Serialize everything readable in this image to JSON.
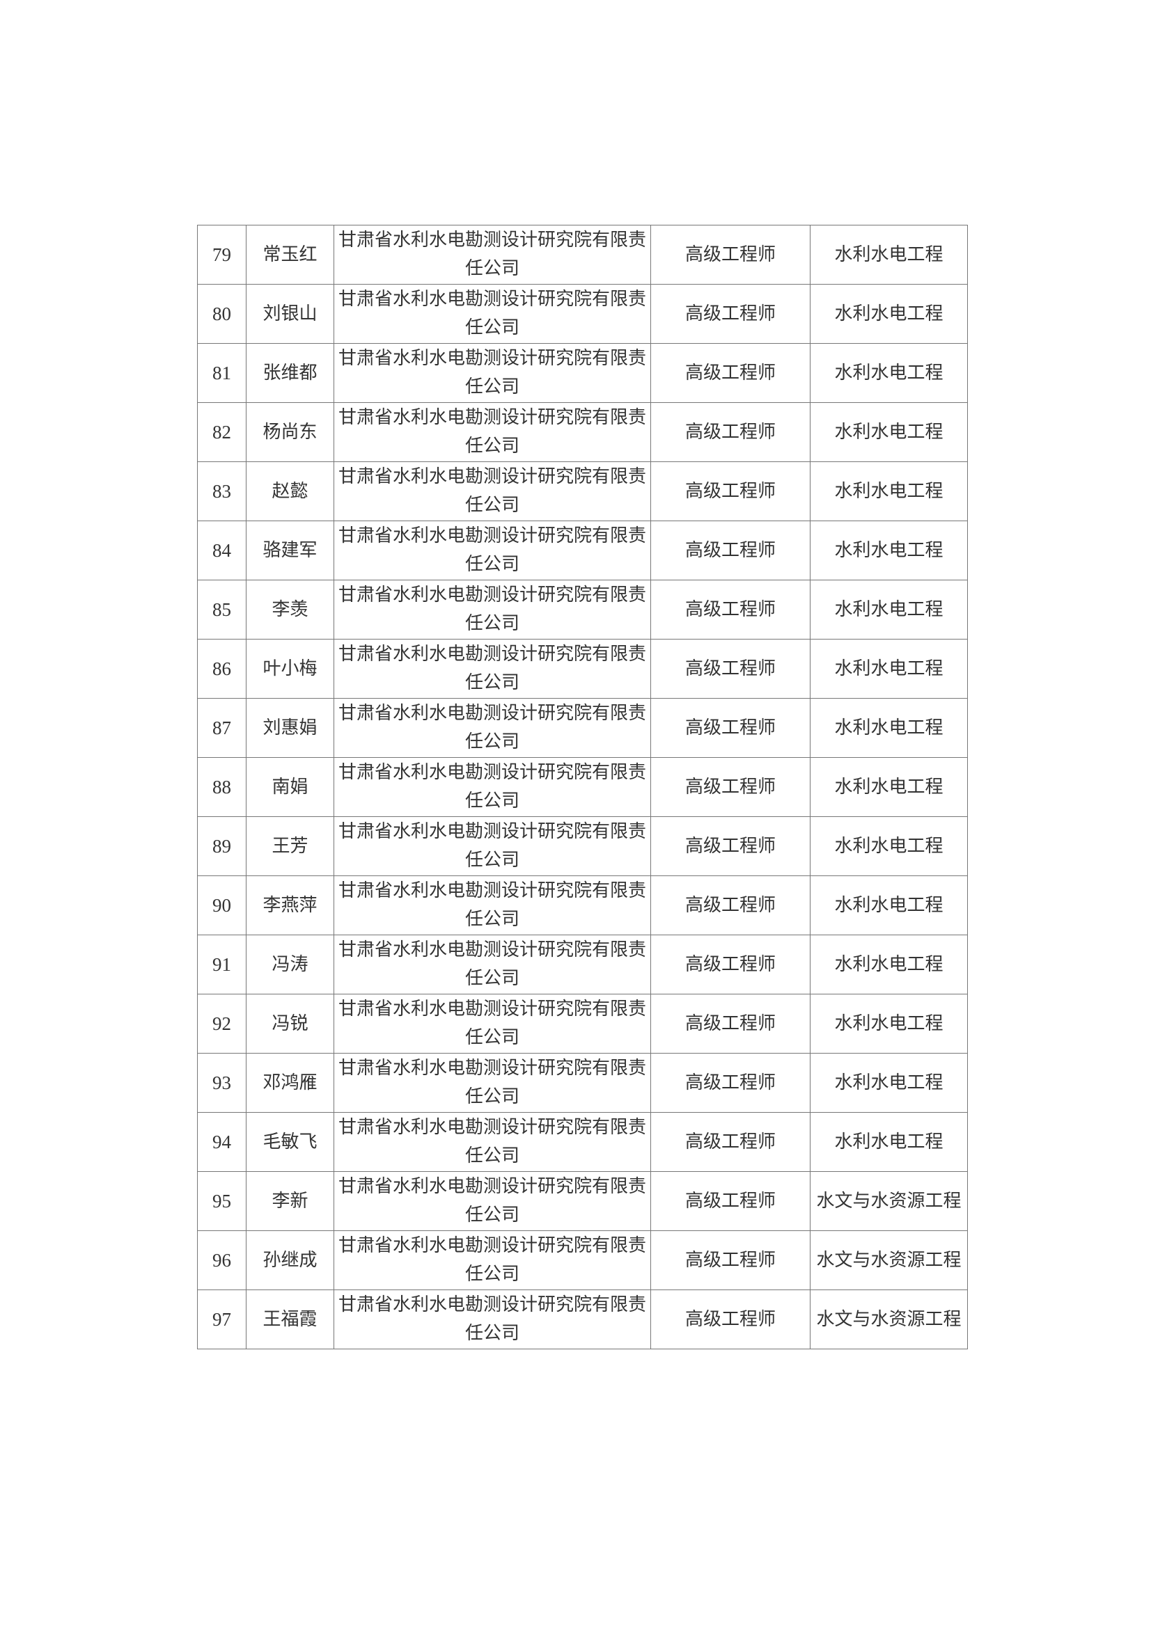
{
  "rows": [
    {
      "no": "79",
      "name": "常玉红",
      "org": "甘肃省水利水电勘测设计研究院有限责任公司",
      "title": "高级工程师",
      "major": "水利水电工程"
    },
    {
      "no": "80",
      "name": "刘银山",
      "org": "甘肃省水利水电勘测设计研究院有限责任公司",
      "title": "高级工程师",
      "major": "水利水电工程"
    },
    {
      "no": "81",
      "name": "张维都",
      "org": "甘肃省水利水电勘测设计研究院有限责任公司",
      "title": "高级工程师",
      "major": "水利水电工程"
    },
    {
      "no": "82",
      "name": "杨尚东",
      "org": "甘肃省水利水电勘测设计研究院有限责任公司",
      "title": "高级工程师",
      "major": "水利水电工程"
    },
    {
      "no": "83",
      "name": "赵懿",
      "org": "甘肃省水利水电勘测设计研究院有限责任公司",
      "title": "高级工程师",
      "major": "水利水电工程"
    },
    {
      "no": "84",
      "name": "骆建军",
      "org": "甘肃省水利水电勘测设计研究院有限责任公司",
      "title": "高级工程师",
      "major": "水利水电工程"
    },
    {
      "no": "85",
      "name": "李羡",
      "org": "甘肃省水利水电勘测设计研究院有限责任公司",
      "title": "高级工程师",
      "major": "水利水电工程"
    },
    {
      "no": "86",
      "name": "叶小梅",
      "org": "甘肃省水利水电勘测设计研究院有限责任公司",
      "title": "高级工程师",
      "major": "水利水电工程"
    },
    {
      "no": "87",
      "name": "刘惠娟",
      "org": "甘肃省水利水电勘测设计研究院有限责任公司",
      "title": "高级工程师",
      "major": "水利水电工程"
    },
    {
      "no": "88",
      "name": "南娟",
      "org": "甘肃省水利水电勘测设计研究院有限责任公司",
      "title": "高级工程师",
      "major": "水利水电工程"
    },
    {
      "no": "89",
      "name": "王芳",
      "org": "甘肃省水利水电勘测设计研究院有限责任公司",
      "title": "高级工程师",
      "major": "水利水电工程"
    },
    {
      "no": "90",
      "name": "李燕萍",
      "org": "甘肃省水利水电勘测设计研究院有限责任公司",
      "title": "高级工程师",
      "major": "水利水电工程"
    },
    {
      "no": "91",
      "name": "冯涛",
      "org": "甘肃省水利水电勘测设计研究院有限责任公司",
      "title": "高级工程师",
      "major": "水利水电工程"
    },
    {
      "no": "92",
      "name": "冯锐",
      "org": "甘肃省水利水电勘测设计研究院有限责任公司",
      "title": "高级工程师",
      "major": "水利水电工程"
    },
    {
      "no": "93",
      "name": "邓鸿雁",
      "org": "甘肃省水利水电勘测设计研究院有限责任公司",
      "title": "高级工程师",
      "major": "水利水电工程"
    },
    {
      "no": "94",
      "name": "毛敏飞",
      "org": "甘肃省水利水电勘测设计研究院有限责任公司",
      "title": "高级工程师",
      "major": "水利水电工程"
    },
    {
      "no": "95",
      "name": "李新",
      "org": "甘肃省水利水电勘测设计研究院有限责任公司",
      "title": "高级工程师",
      "major": "水文与水资源工程"
    },
    {
      "no": "96",
      "name": "孙继成",
      "org": "甘肃省水利水电勘测设计研究院有限责任公司",
      "title": "高级工程师",
      "major": "水文与水资源工程"
    },
    {
      "no": "97",
      "name": "王福霞",
      "org": "甘肃省水利水电勘测设计研究院有限责任公司",
      "title": "高级工程师",
      "major": "水文与水资源工程"
    }
  ]
}
